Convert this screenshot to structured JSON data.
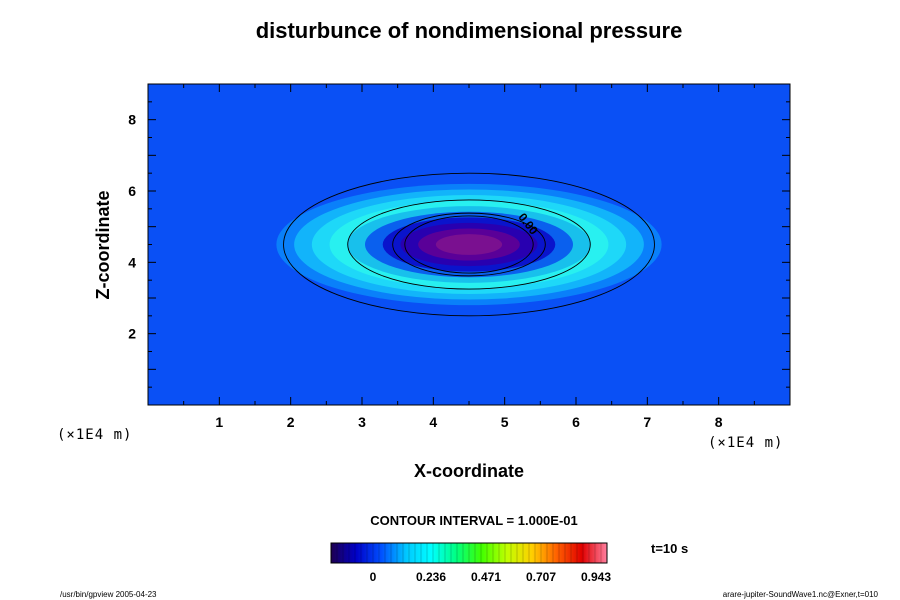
{
  "chart_data": {
    "type": "heatmap",
    "title": "disturbunce of nondimensional pressure",
    "xlabel": "X-coordinate",
    "ylabel": "Z-coordinate",
    "x_unit": "(×1E4 m)",
    "z_unit": "(×1E4 m)",
    "xlim": [
      0,
      9
    ],
    "zlim": [
      0,
      9
    ],
    "x_ticks": [
      "1",
      "2",
      "3",
      "4",
      "5",
      "6",
      "7",
      "8"
    ],
    "z_ticks": [
      "2",
      "4",
      "6",
      "8"
    ],
    "field": {
      "center_x": 4.5,
      "center_z": 4.5,
      "radius_x": 2.7,
      "radius_z": 1.7,
      "background_value": 0.236,
      "fill_levels": [
        {
          "value": 0.236,
          "color": "#0a50f5"
        },
        {
          "value": 0.3,
          "color": "#0a80fa"
        },
        {
          "value": 0.38,
          "color": "#12b4fa"
        },
        {
          "value": 0.45,
          "color": "#1ed8f8"
        },
        {
          "value": 0.5,
          "color": "#28f0f0"
        },
        {
          "value": 0.45,
          "color": "#18c0ec"
        },
        {
          "value": 0.3,
          "color": "#0a60ee"
        },
        {
          "value": 0.15,
          "color": "#0a14cc"
        },
        {
          "value": 0.05,
          "color": "#2800b0"
        },
        {
          "value": 0.0,
          "color": "#5a0098"
        },
        {
          "value": -0.05,
          "color": "#7a1090"
        }
      ]
    },
    "contours": [
      {
        "value": 0.2,
        "rx": 2.6,
        "rz": 2.0
      },
      {
        "value": 0.1,
        "rx": 1.7,
        "rz": 1.25
      },
      {
        "value": 0.0,
        "rx": 1.07,
        "rz": 0.88
      },
      {
        "value": -0.05,
        "rx": 0.9,
        "rz": 0.8
      }
    ],
    "contour_annotation": "0.00",
    "contour_interval_label": "CONTOUR INTERVAL = 1.000E-01",
    "colorbar": {
      "ticks": [
        "0",
        "0.236",
        "0.471",
        "0.707",
        "0.943"
      ],
      "stops": [
        "#1e0050",
        "#0000c8",
        "#0050ff",
        "#00c8ff",
        "#00ffff",
        "#00ff80",
        "#40ff00",
        "#c0ff00",
        "#ffd000",
        "#ff6000",
        "#e00000",
        "#ff80a0"
      ]
    },
    "time_label": "t=10 s",
    "footer_left": "/usr/bin/gpview 2005-04-23",
    "footer_right": "arare-jupiter-SoundWave1.nc@Exner,t=010"
  }
}
